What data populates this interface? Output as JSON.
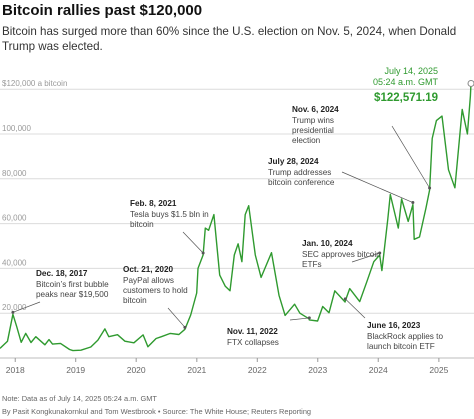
{
  "title": "Bitcoin rallies past $120,000",
  "subtitle": "Bitcoin has surged more than 60% since the U.S. election on Nov. 5, 2024, when Donald Trump was elected.",
  "note": "Note: Data as of July 14, 2025 05:24 a.m. GMT",
  "credit": "By Pasit Kongkunakornkul and Tom Westbrook • Source: The White House; Reuters Reporting",
  "chart_data": {
    "type": "line",
    "title": "Bitcoin rallies past $120,000",
    "yunit_label": "$120,000 a bitcoin",
    "ylim": [
      0,
      125000
    ],
    "y_ticks": [
      {
        "value": 20000,
        "label": "20,000"
      },
      {
        "value": 40000,
        "label": "40,000"
      },
      {
        "value": 60000,
        "label": "60,000"
      },
      {
        "value": 80000,
        "label": "80,000"
      },
      {
        "value": 100000,
        "label": "100,000"
      },
      {
        "value": 120000,
        "label": "$120,000 a bitcoin"
      }
    ],
    "x_ticks": [
      "2018",
      "2019",
      "2020",
      "2021",
      "2022",
      "2023",
      "2024",
      "2025"
    ],
    "xlim": [
      "2017-10-01",
      "2025-08-01"
    ],
    "grid": true,
    "line_color": "#2f9a2f",
    "series": [
      {
        "x": [
          "2017-10-01",
          "2017-11-15",
          "2017-12-18",
          "2018-01-10",
          "2018-02-06",
          "2018-03-05",
          "2018-04-06",
          "2018-05-05",
          "2018-06-29",
          "2018-07-24",
          "2018-08-14",
          "2018-10-01",
          "2018-11-25",
          "2018-12-15",
          "2019-02-01",
          "2019-04-02",
          "2019-05-15",
          "2019-06-26",
          "2019-07-20",
          "2019-09-10",
          "2019-10-25",
          "2019-12-18",
          "2020-02-12",
          "2020-03-12",
          "2020-04-30",
          "2020-06-01",
          "2020-07-25",
          "2020-09-15",
          "2020-10-21",
          "2020-11-25",
          "2020-12-31",
          "2021-01-08",
          "2021-02-08",
          "2021-02-21",
          "2021-03-13",
          "2021-04-14",
          "2021-05-19",
          "2021-06-22",
          "2021-07-20",
          "2021-08-15",
          "2021-09-07",
          "2021-09-30",
          "2021-10-20",
          "2021-11-10",
          "2021-12-20",
          "2022-01-24",
          "2022-03-28",
          "2022-05-12",
          "2022-06-18",
          "2022-08-14",
          "2022-09-15",
          "2022-11-09",
          "2022-11-11",
          "2022-12-31",
          "2023-01-31",
          "2023-03-10",
          "2023-04-14",
          "2023-06-15",
          "2023-06-16",
          "2023-07-13",
          "2023-09-11",
          "2023-10-24",
          "2023-12-05",
          "2024-01-10",
          "2024-01-23",
          "2024-02-28",
          "2024-03-14",
          "2024-05-01",
          "2024-05-21",
          "2024-06-30",
          "2024-07-28",
          "2024-08-05",
          "2024-09-06",
          "2024-10-15",
          "2024-11-06",
          "2024-11-22",
          "2024-12-17",
          "2025-01-20",
          "2025-02-28",
          "2025-04-08",
          "2025-05-22",
          "2025-06-22",
          "2025-07-10",
          "2025-07-14"
        ],
        "values": [
          4300,
          7500,
          19500,
          14000,
          7000,
          11000,
          6900,
          9500,
          5900,
          8200,
          6200,
          6500,
          3800,
          3300,
          3500,
          4900,
          8000,
          13000,
          9500,
          10400,
          7500,
          6800,
          10300,
          5000,
          8700,
          9500,
          11000,
          10500,
          12800,
          19200,
          29000,
          40000,
          46000,
          58000,
          57000,
          64000,
          37000,
          32000,
          30000,
          46000,
          51000,
          43000,
          64000,
          68000,
          46000,
          36000,
          47000,
          28000,
          19000,
          24000,
          20000,
          17500,
          17000,
          16500,
          23000,
          20200,
          30000,
          25000,
          25500,
          31000,
          25200,
          34000,
          43000,
          46000,
          39000,
          62000,
          73000,
          58000,
          71000,
          61000,
          68500,
          53000,
          54000,
          67000,
          75000,
          98000,
          106000,
          108000,
          84000,
          76000,
          111000,
          100000,
          117000,
          122571
        ]
      }
    ],
    "annotations": [
      {
        "date": "2017-12-18",
        "heading": "Dec. 18, 2017",
        "text": "Bitcoin’s first bubble peaks near $19,500"
      },
      {
        "date": "2020-10-21",
        "heading": "Oct. 21, 2020",
        "text": "PayPal allows customers to hold bitcoin"
      },
      {
        "date": "2021-02-08",
        "heading": "Feb. 8, 2021",
        "text": "Tesla buys $1.5 bln in bitcoin"
      },
      {
        "date": "2022-11-11",
        "heading": "Nov. 11, 2022",
        "text": "FTX collapses"
      },
      {
        "date": "2023-06-16",
        "heading": "June 16, 2023",
        "text": "BlackRock applies to launch bitcoin ETF"
      },
      {
        "date": "2024-01-10",
        "heading": "Jan. 10, 2024",
        "text": "SEC approves bitcoin ETFs"
      },
      {
        "date": "2024-07-28",
        "heading": "July 28, 2024",
        "text": "Trump addresses bitcoin conference"
      },
      {
        "date": "2024-11-06",
        "heading": "Nov. 6, 2024",
        "text": "Trump wins presidential election"
      }
    ],
    "latest": {
      "date": "2025-07-14",
      "label": "July 14, 2025 05:24 a.m. GMT",
      "value": 122571.19,
      "value_label": "$122,571.19"
    }
  }
}
